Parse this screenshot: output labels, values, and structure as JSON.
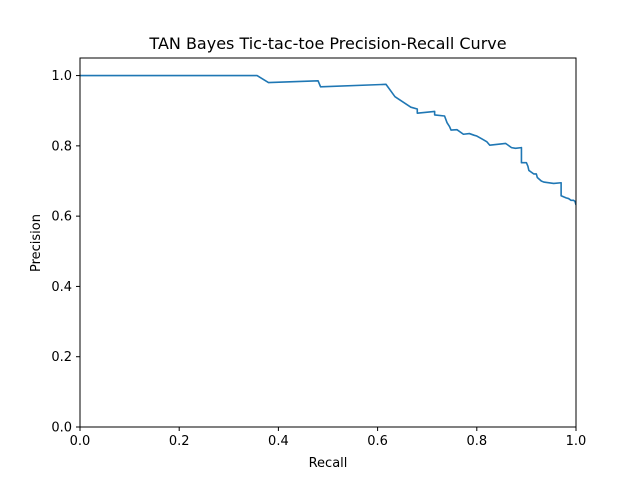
{
  "chart_data": {
    "type": "line",
    "title": "TAN Bayes Tic-tac-toe Precision-Recall Curve",
    "xlabel": "Recall",
    "ylabel": "Precision",
    "xlim": [
      0.0,
      1.0
    ],
    "ylim": [
      0.0,
      1.05
    ],
    "grid": false,
    "xticks": [
      0.0,
      0.2,
      0.4,
      0.6,
      0.8,
      1.0
    ],
    "xtick_labels": [
      "0.0",
      "0.2",
      "0.4",
      "0.6",
      "0.8",
      "1.0"
    ],
    "yticks": [
      0.0,
      0.2,
      0.4,
      0.6,
      0.8,
      1.0
    ],
    "ytick_labels": [
      "0.0",
      "0.2",
      "0.4",
      "0.6",
      "0.8",
      "1.0"
    ],
    "series": [
      {
        "color": "#1f77b4",
        "x": [
          0.0,
          0.357,
          0.38,
          0.48,
          0.485,
          0.617,
          0.635,
          0.667,
          0.68,
          0.68,
          0.715,
          0.715,
          0.735,
          0.74,
          0.745,
          0.748,
          0.76,
          0.773,
          0.785,
          0.795,
          0.8,
          0.81,
          0.82,
          0.826,
          0.858,
          0.87,
          0.878,
          0.89,
          0.89,
          0.9,
          0.903,
          0.905,
          0.915,
          0.92,
          0.922,
          0.93,
          0.935,
          0.955,
          0.97,
          0.97,
          0.98,
          0.985,
          0.99,
          0.995,
          0.998,
          1.0
        ],
        "y": [
          1.0,
          1.0,
          0.98,
          0.985,
          0.968,
          0.975,
          0.94,
          0.91,
          0.905,
          0.893,
          0.898,
          0.888,
          0.885,
          0.866,
          0.855,
          0.845,
          0.846,
          0.833,
          0.835,
          0.83,
          0.828,
          0.82,
          0.812,
          0.802,
          0.807,
          0.795,
          0.793,
          0.795,
          0.752,
          0.752,
          0.742,
          0.73,
          0.72,
          0.72,
          0.71,
          0.7,
          0.697,
          0.693,
          0.695,
          0.658,
          0.652,
          0.65,
          0.645,
          0.645,
          0.642,
          0.632
        ]
      }
    ]
  }
}
